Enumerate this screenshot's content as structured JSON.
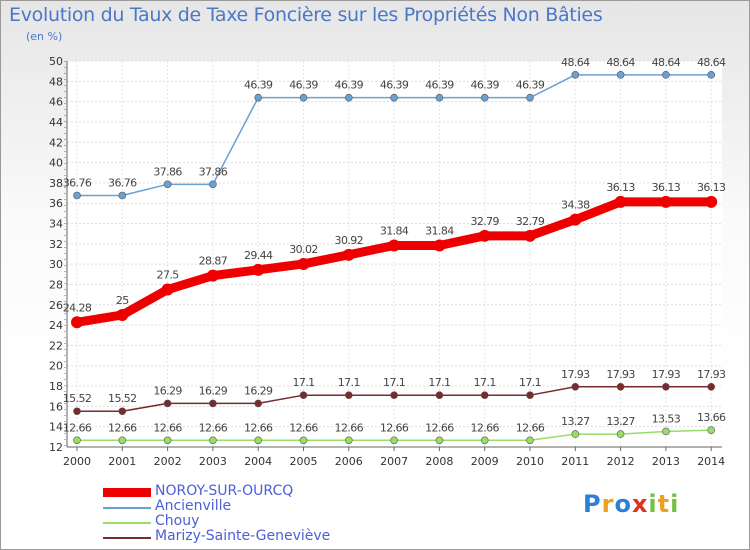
{
  "chart_data": {
    "type": "line",
    "title": "Evolution du Taux de Taxe Foncière sur les Propriétés Non Bâties",
    "ylabel": "(en %)",
    "xlabel": "",
    "ylim": [
      12,
      50
    ],
    "yticks": [
      12,
      14,
      16,
      18,
      20,
      22,
      24,
      26,
      28,
      30,
      32,
      34,
      36,
      38,
      40,
      42,
      44,
      46,
      48,
      50
    ],
    "categories": [
      "2000",
      "2001",
      "2002",
      "2003",
      "2004",
      "2005",
      "2006",
      "2007",
      "2008",
      "2009",
      "2010",
      "2011",
      "2012",
      "2013",
      "2014"
    ],
    "series": [
      {
        "name": "NOROY-SUR-OURCQ",
        "color": "#ee0000",
        "values": [
          24.28,
          25,
          27.5,
          28.87,
          29.44,
          30.02,
          30.92,
          31.84,
          31.84,
          32.79,
          32.79,
          34.38,
          36.13,
          36.13,
          36.13
        ],
        "labels": [
          "24.28",
          "25",
          "27.5",
          "28.87",
          "29.44",
          "30.02",
          "30.92",
          "31.84",
          "31.84",
          "32.79",
          "32.79",
          "34.38",
          "36.13",
          "36.13",
          "36.13"
        ]
      },
      {
        "name": "Ancienville",
        "color": "#6aa0d2",
        "values": [
          36.76,
          36.76,
          37.86,
          37.86,
          46.39,
          46.39,
          46.39,
          46.39,
          46.39,
          46.39,
          46.39,
          48.64,
          48.64,
          48.64,
          48.64
        ],
        "labels": [
          "36.76",
          "36.76",
          "37.86",
          "37.86",
          "46.39",
          "46.39",
          "46.39",
          "46.39",
          "46.39",
          "46.39",
          "46.39",
          "48.64",
          "48.64",
          "48.64",
          "48.64"
        ]
      },
      {
        "name": "Chouy",
        "color": "#99dd66",
        "values": [
          12.66,
          12.66,
          12.66,
          12.66,
          12.66,
          12.66,
          12.66,
          12.66,
          12.66,
          12.66,
          12.66,
          13.27,
          13.27,
          13.53,
          13.66
        ],
        "labels": [
          "12.66",
          "12.66",
          "12.66",
          "12.66",
          "12.66",
          "12.66",
          "12.66",
          "12.66",
          "12.66",
          "12.66",
          "12.66",
          "13.27",
          "13.27",
          "13.53",
          "13.66"
        ]
      },
      {
        "name": "Marizy-Sainte-Geneviève",
        "color": "#7a2a2a",
        "values": [
          15.52,
          15.52,
          16.29,
          16.29,
          16.29,
          17.1,
          17.1,
          17.1,
          17.1,
          17.1,
          17.1,
          17.93,
          17.93,
          17.93,
          17.93
        ],
        "labels": [
          "15.52",
          "15.52",
          "16.29",
          "16.29",
          "16.29",
          "17.1",
          "17.1",
          "17.1",
          "17.1",
          "17.1",
          "17.1",
          "17.93",
          "17.93",
          "17.93",
          "17.93"
        ]
      }
    ],
    "legend": "bottom-left"
  },
  "logo": {
    "text": "Proxiti"
  }
}
